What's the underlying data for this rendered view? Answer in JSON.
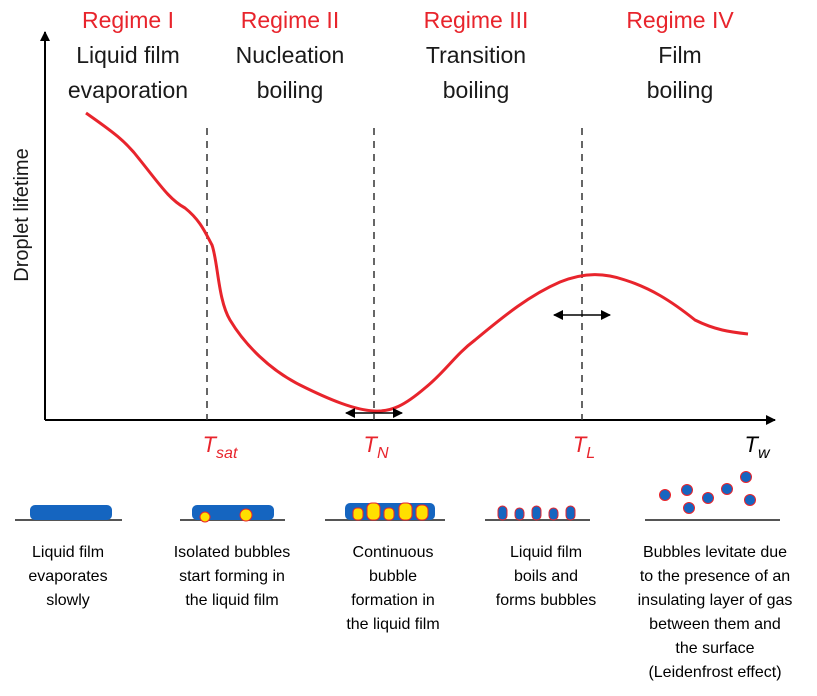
{
  "regimes": [
    {
      "name": "Regime I",
      "lines": [
        "Liquid  film",
        "evaporation"
      ]
    },
    {
      "name": "Regime II",
      "lines": [
        "Nucleation",
        "boiling"
      ]
    },
    {
      "name": "Regime III",
      "lines": [
        "Transition",
        "boiling"
      ]
    },
    {
      "name": "Regime IV",
      "lines": [
        "Film",
        "boiling"
      ]
    }
  ],
  "y_axis_label": "Droplet lifetime",
  "temperatures": [
    {
      "symbol": "T",
      "subscript": "sat"
    },
    {
      "symbol": "T",
      "subscript": "N"
    },
    {
      "symbol": "T",
      "subscript": "L"
    }
  ],
  "x_axis_label": {
    "symbol": "T",
    "subscript": "w"
  },
  "stages": [
    {
      "lines": [
        "Liquid film",
        "evaporates",
        "slowly"
      ]
    },
    {
      "lines": [
        "Isolated bubbles",
        "start forming in",
        "the liquid film"
      ]
    },
    {
      "lines": [
        "Continuous",
        "bubble",
        "formation in",
        "the liquid film"
      ]
    },
    {
      "lines": [
        "Liquid film",
        "boils and",
        "forms bubbles"
      ]
    },
    {
      "lines": [
        "Bubbles levitate due",
        "to the presence of an",
        "insulating layer of gas",
        "between them and",
        "the surface",
        "(Leidenfrost effect)"
      ]
    }
  ]
}
